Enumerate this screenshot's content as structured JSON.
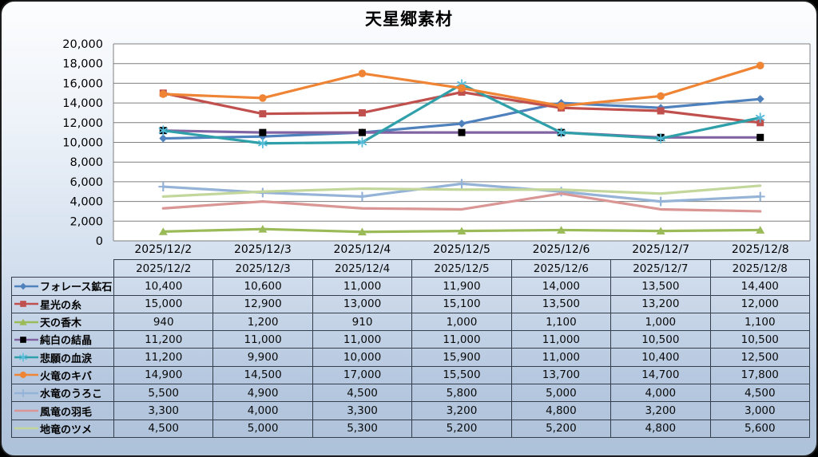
{
  "title": "天星郷素材",
  "chart_data": {
    "type": "line",
    "title": "天星郷素材",
    "categories": [
      "2025/12/2",
      "2025/12/3",
      "2025/12/4",
      "2025/12/5",
      "2025/12/6",
      "2025/12/7",
      "2025/12/8"
    ],
    "series": [
      {
        "name": "フォレース鉱石",
        "color": "#4F81BD",
        "marker": "diamond",
        "marker_color": "#4F81BD",
        "values": [
          10400,
          10600,
          11000,
          11900,
          14000,
          13500,
          14400
        ]
      },
      {
        "name": "星光の糸",
        "color": "#C0504D",
        "marker": "square",
        "marker_color": "#C0504D",
        "values": [
          15000,
          12900,
          13000,
          15100,
          13500,
          13200,
          12000
        ]
      },
      {
        "name": "天の香木",
        "color": "#9BBB59",
        "marker": "triangle",
        "marker_color": "#9BBB59",
        "values": [
          940,
          1200,
          910,
          1000,
          1100,
          1000,
          1100
        ]
      },
      {
        "name": "純白の結晶",
        "color": "#8064A2",
        "marker": "square",
        "marker_color": "#000000",
        "values": [
          11200,
          11000,
          11000,
          11000,
          11000,
          10500,
          10500
        ]
      },
      {
        "name": "悲願の血涙",
        "color": "#2FA0AA",
        "marker": "asterisk",
        "marker_color": "#55BCD9",
        "values": [
          11200,
          9900,
          10000,
          15900,
          11000,
          10400,
          12500
        ]
      },
      {
        "name": "火竜のキバ",
        "color": "#EE8434",
        "marker": "circle",
        "marker_color": "#EE8434",
        "values": [
          14900,
          14500,
          17000,
          15500,
          13700,
          14700,
          17800
        ]
      },
      {
        "name": "水竜のうろこ",
        "color": "#95B3D7",
        "marker": "plus",
        "marker_color": "#95B3D7",
        "values": [
          5500,
          4900,
          4500,
          5800,
          5000,
          4000,
          4500
        ]
      },
      {
        "name": "風竜の羽毛",
        "color": "#D99694",
        "marker": "none",
        "marker_color": "#D99694",
        "values": [
          3300,
          4000,
          3300,
          3200,
          4800,
          3200,
          3000
        ]
      },
      {
        "name": "地竜のツメ",
        "color": "#C3D69B",
        "marker": "none",
        "marker_color": "#C3D69B",
        "values": [
          4500,
          5000,
          5300,
          5200,
          5200,
          4800,
          5600
        ]
      }
    ],
    "ylim": [
      0,
      20000
    ],
    "ytick_step": 2000,
    "grid": true,
    "legend_position": "table-left-column"
  },
  "colors": {
    "grid": "#7F7F7F",
    "plot_bg": "#FFFFFF",
    "table_border": "#353E4B",
    "panel_outline": "#1C1C1C",
    "text": "#000000"
  }
}
